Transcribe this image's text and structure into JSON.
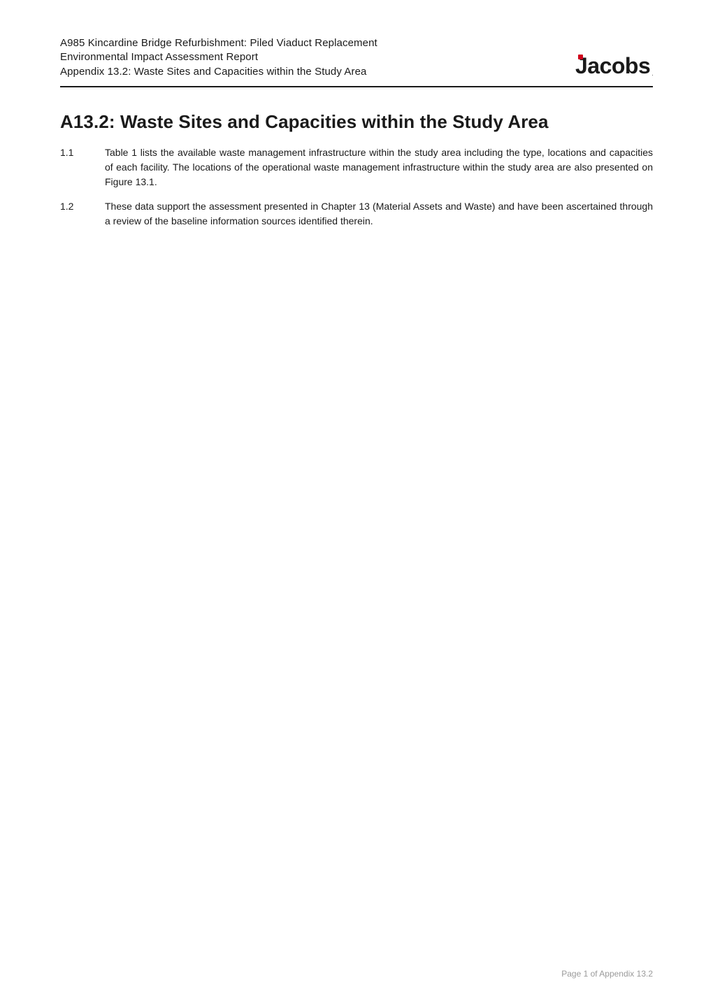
{
  "header": {
    "line1": "A985 Kincardine Bridge Refurbishment: Piled Viaduct Replacement",
    "line2": "Environmental Impact Assessment Report",
    "line3": "Appendix 13.2: Waste Sites and Capacities within the Study Area",
    "logo_text": "Jacobs",
    "logo_dot_color": "#d0021b",
    "logo_tm": "."
  },
  "title": "A13.2: Waste Sites and Capacities within the Study Area",
  "paragraphs": [
    {
      "num": "1.1",
      "text": "Table 1 lists the available waste management infrastructure within the study area including the type, locations and capacities of each facility. The locations of the operational waste management infrastructure within the study area are also presented on Figure 13.1."
    },
    {
      "num": "1.2",
      "text": "These data support the assessment presented in Chapter 13 (Material Assets and Waste) and have been ascertained through a review of the baseline information sources identified therein."
    }
  ],
  "footer": "Page 1 of Appendix 13.2",
  "colors": {
    "text": "#1a1a1a",
    "background": "#ffffff",
    "footer": "#9a9a9a",
    "rule": "#1a1a1a"
  },
  "fonts": {
    "header_size_pt": 15,
    "title_size_pt": 26,
    "body_size_pt": 14,
    "footer_size_pt": 12,
    "logo_size_pt": 32
  }
}
